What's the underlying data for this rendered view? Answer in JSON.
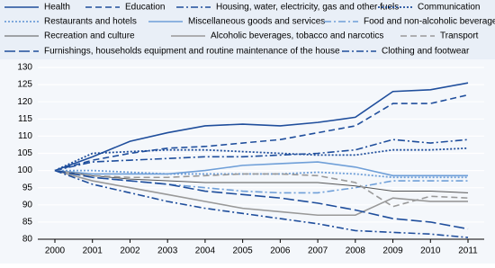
{
  "chart_data": {
    "type": "line",
    "x": [
      2000,
      2001,
      2002,
      2003,
      2004,
      2005,
      2006,
      2007,
      2008,
      2009,
      2010,
      2011
    ],
    "ylim": [
      80,
      130
    ],
    "yticks": [
      80,
      85,
      90,
      95,
      100,
      105,
      110,
      115,
      120,
      125,
      130
    ],
    "grid": true,
    "series": [
      {
        "name": "Health",
        "color": "#1f4e9c",
        "dash": "solid",
        "values": [
          100,
          104,
          108.5,
          111,
          113,
          113.5,
          113,
          114,
          115.5,
          123,
          123.5,
          125.5
        ]
      },
      {
        "name": "Education",
        "color": "#1f4e9c",
        "dash": "dashed",
        "values": [
          100,
          103,
          105,
          106.5,
          107,
          108,
          109,
          111,
          113,
          119.5,
          119.5,
          122
        ]
      },
      {
        "name": "Housing, water, electricity, gas and other fuels",
        "color": "#1f4e9c",
        "dash": "dashdot",
        "values": [
          100,
          102.5,
          103,
          103.5,
          104,
          104,
          104.5,
          105,
          106,
          109,
          108,
          109
        ]
      },
      {
        "name": "Communication",
        "color": "#1f4e9c",
        "dash": "dotted",
        "values": [
          100,
          105,
          105.5,
          106,
          106,
          105.5,
          105,
          104.5,
          104.5,
          106,
          106,
          106.5
        ]
      },
      {
        "name": "Restaurants and hotels",
        "color": "#6f9fd8",
        "dash": "dotted",
        "values": [
          100,
          100,
          99.5,
          99,
          99,
          99,
          99,
          99.5,
          99,
          98,
          98,
          98
        ]
      },
      {
        "name": "Miscellaneous goods and services",
        "color": "#6f9fd8",
        "dash": "solid",
        "values": [
          100,
          99,
          99,
          99,
          100,
          101.5,
          102,
          102.5,
          101,
          98.5,
          98.5,
          98.5
        ]
      },
      {
        "name": "Food and non-alcoholic beverages",
        "color": "#6f9fd8",
        "dash": "dashdot",
        "values": [
          100,
          98,
          97,
          96,
          95,
          94,
          93.5,
          93.5,
          95,
          97,
          97,
          97
        ]
      },
      {
        "name": "Recreation and culture",
        "color": "#555555",
        "dash": "thin",
        "values": [
          100,
          98.5,
          97.5,
          97,
          96.5,
          96.5,
          96.5,
          96.5,
          95.5,
          94,
          94,
          93.5
        ]
      },
      {
        "name": "Alcoholic beverages, tobacco and narcotics",
        "color": "#999999",
        "dash": "solid",
        "values": [
          100,
          97,
          95,
          93,
          91,
          89,
          88,
          87,
          87,
          92,
          91,
          91
        ]
      },
      {
        "name": "Transport",
        "color": "#999999",
        "dash": "dashed",
        "values": [
          100,
          98.5,
          98,
          98,
          98.5,
          99,
          99,
          98.5,
          96.5,
          89.5,
          92.5,
          92
        ]
      },
      {
        "name": "Furnishings, households equipment and routine maintenance of the house",
        "color": "#1f4e9c",
        "dash": "longdash",
        "values": [
          100,
          98,
          97,
          96,
          94,
          93,
          92,
          90.5,
          88.5,
          86,
          85,
          83
        ]
      },
      {
        "name": "Clothing and footwear",
        "color": "#1f4e9c",
        "dash": "dashdot",
        "values": [
          100,
          96,
          93.5,
          91,
          89,
          87.5,
          86,
          84.5,
          82.5,
          82,
          81.5,
          80.5
        ]
      }
    ]
  }
}
